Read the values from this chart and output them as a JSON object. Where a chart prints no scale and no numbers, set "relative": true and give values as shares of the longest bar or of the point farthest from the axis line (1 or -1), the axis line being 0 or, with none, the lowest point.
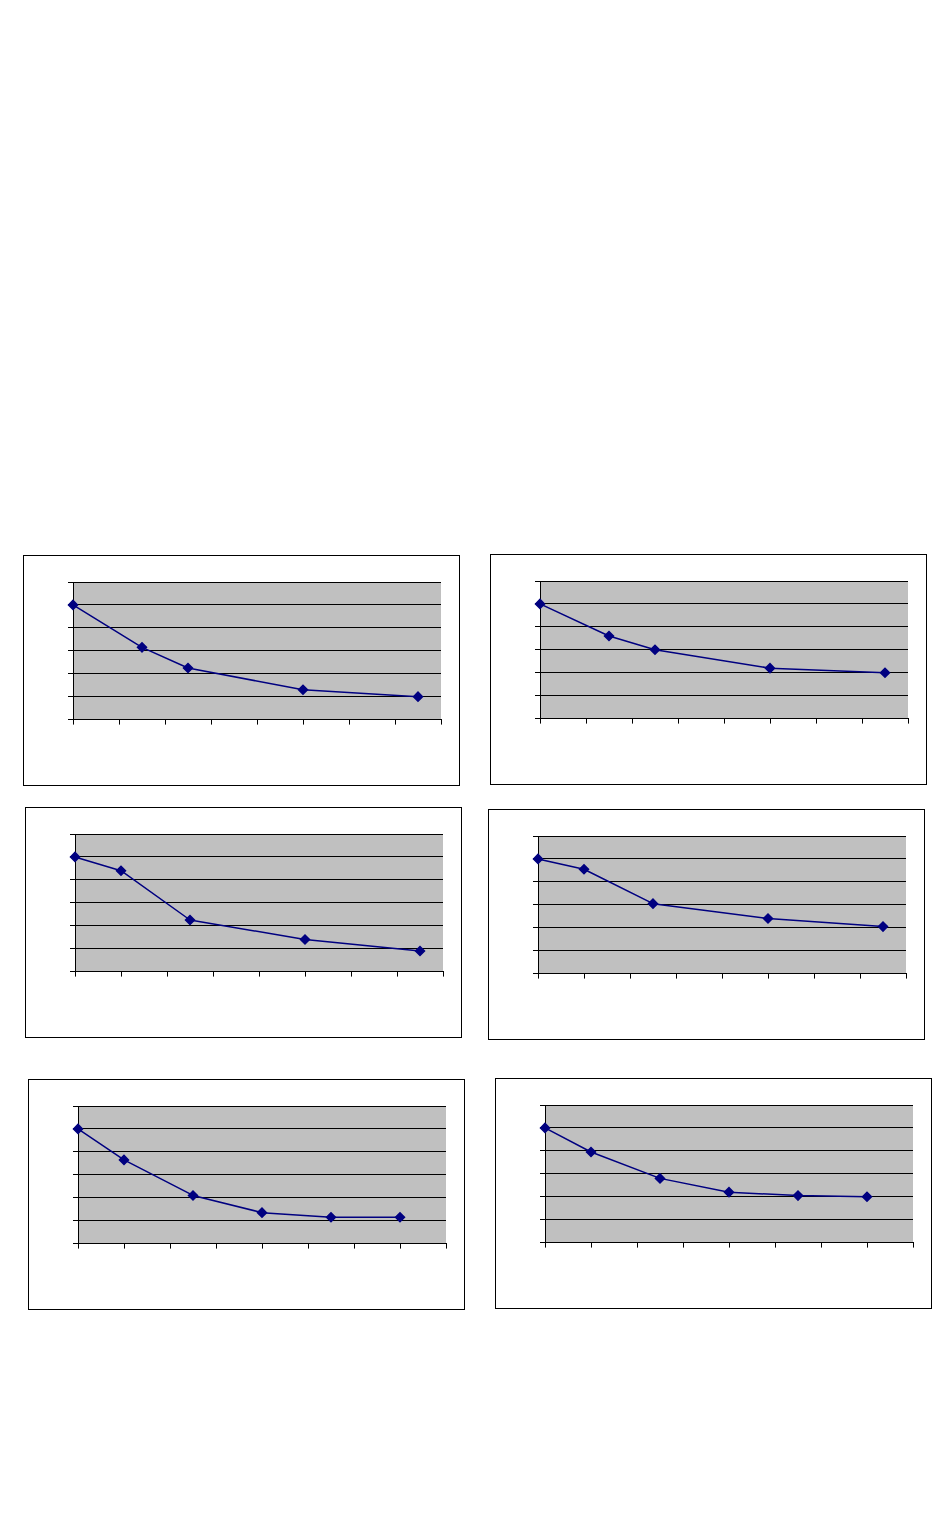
{
  "chart_data": [
    {
      "type": "line",
      "relative": true,
      "grid": "y",
      "marker": "diamond",
      "categories": [
        null,
        null,
        null,
        null,
        null,
        null,
        null,
        null,
        null,
        null,
        null,
        null,
        null,
        null,
        null,
        null,
        null
      ],
      "series": [
        {
          "color": "#000080",
          "values": [
            1,
            null,
            null,
            0.63,
            null,
            0.45,
            null,
            null,
            null,
            null,
            0.26,
            null,
            null,
            null,
            null,
            0.2,
            null
          ]
        }
      ]
    },
    {
      "type": "line",
      "relative": true,
      "grid": "y",
      "marker": "diamond",
      "categories": [
        null,
        null,
        null,
        null,
        null,
        null,
        null,
        null,
        null,
        null,
        null,
        null,
        null,
        null,
        null,
        null,
        null
      ],
      "series": [
        {
          "color": "#000080",
          "values": [
            1,
            null,
            null,
            0.72,
            null,
            0.6,
            null,
            null,
            null,
            null,
            0.44,
            null,
            null,
            null,
            null,
            0.4,
            null
          ]
        }
      ]
    },
    {
      "type": "line",
      "relative": true,
      "grid": "y",
      "marker": "diamond",
      "categories": [
        null,
        null,
        null,
        null,
        null,
        null,
        null,
        null,
        null,
        null,
        null,
        null,
        null,
        null,
        null,
        null,
        null
      ],
      "series": [
        {
          "color": "#000080",
          "values": [
            1,
            null,
            0.88,
            null,
            null,
            0.45,
            null,
            null,
            null,
            null,
            0.28,
            null,
            null,
            null,
            null,
            0.18,
            null
          ]
        }
      ]
    },
    {
      "type": "line",
      "relative": true,
      "grid": "y",
      "marker": "diamond",
      "categories": [
        null,
        null,
        null,
        null,
        null,
        null,
        null,
        null,
        null,
        null,
        null,
        null,
        null,
        null,
        null,
        null,
        null
      ],
      "series": [
        {
          "color": "#000080",
          "values": [
            1,
            null,
            0.91,
            null,
            null,
            0.61,
            null,
            null,
            null,
            null,
            0.48,
            null,
            null,
            null,
            null,
            0.41,
            null
          ]
        }
      ]
    },
    {
      "type": "line",
      "relative": true,
      "grid": "y",
      "marker": "diamond",
      "categories": [
        null,
        null,
        null,
        null,
        null,
        null,
        null,
        null,
        null,
        null,
        null,
        null,
        null,
        null,
        null,
        null,
        null
      ],
      "series": [
        {
          "color": "#000080",
          "values": [
            1,
            null,
            0.73,
            null,
            null,
            0.42,
            null,
            null,
            0.27,
            null,
            null,
            0.23,
            null,
            null,
            0.23,
            null,
            null
          ]
        }
      ]
    },
    {
      "type": "line",
      "relative": true,
      "grid": "y",
      "marker": "diamond",
      "categories": [
        null,
        null,
        null,
        null,
        null,
        null,
        null,
        null,
        null,
        null,
        null,
        null,
        null,
        null,
        null,
        null,
        null
      ],
      "series": [
        {
          "color": "#000080",
          "values": [
            1,
            null,
            0.79,
            null,
            null,
            0.56,
            null,
            null,
            0.44,
            null,
            null,
            0.41,
            null,
            null,
            0.4,
            null,
            null
          ]
        }
      ]
    }
  ]
}
